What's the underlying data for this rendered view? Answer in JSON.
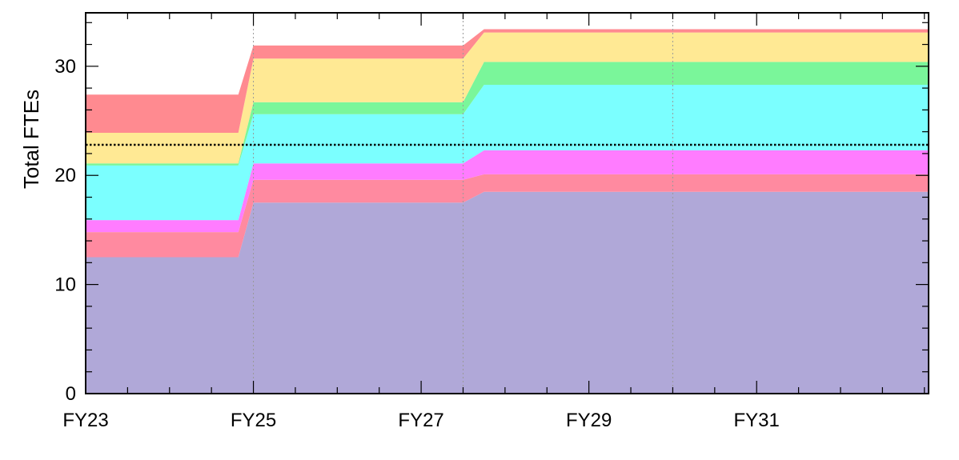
{
  "chart_data": {
    "type": "area",
    "stacked": true,
    "title": "",
    "xlabel": "",
    "ylabel": "Total FTEs",
    "xlim": [
      2023,
      2033.05
    ],
    "ylim": [
      0,
      34.9
    ],
    "x_ticks": [
      2023,
      2025,
      2027,
      2029,
      2031
    ],
    "x_tick_labels": [
      "FY23",
      "FY25",
      "FY27",
      "FY29",
      "FY31"
    ],
    "y_ticks": [
      0,
      10,
      20,
      30
    ],
    "y_tick_labels": [
      "0",
      "10",
      "20",
      "30"
    ],
    "x_minor_step": 0.5,
    "y_minor_step": 2,
    "grid": "vertical dotted at FY25, FY27.5, FY30",
    "x_gridlines": [
      2025,
      2027.5,
      2030
    ],
    "x": [
      2023,
      2024.82,
      2025.0,
      2027.5,
      2027.75,
      2033.05
    ],
    "series": [
      {
        "color": "#b0a8d8",
        "values": [
          12.5,
          12.5,
          17.5,
          17.5,
          18.5,
          18.5
        ]
      },
      {
        "color": "#ff8aa0",
        "values": [
          2.3,
          2.3,
          2.1,
          2.1,
          1.6,
          1.6
        ]
      },
      {
        "color": "#ff7cff",
        "values": [
          1.1,
          1.1,
          1.5,
          1.5,
          2.2,
          2.2
        ]
      },
      {
        "color": "#7bffff",
        "values": [
          5.0,
          5.0,
          4.5,
          4.5,
          6.0,
          6.0
        ]
      },
      {
        "color": "#7af69a",
        "values": [
          0.2,
          0.2,
          1.1,
          1.1,
          2.1,
          2.1
        ]
      },
      {
        "color": "#ffe994",
        "values": [
          2.8,
          2.8,
          4.0,
          4.0,
          2.7,
          2.7
        ]
      },
      {
        "color": "#ff8a90",
        "values": [
          3.5,
          3.5,
          1.2,
          1.2,
          0.3,
          0.3
        ]
      }
    ],
    "reference_line": {
      "y": 22.8,
      "style": "dotted",
      "color": "#000000"
    }
  }
}
